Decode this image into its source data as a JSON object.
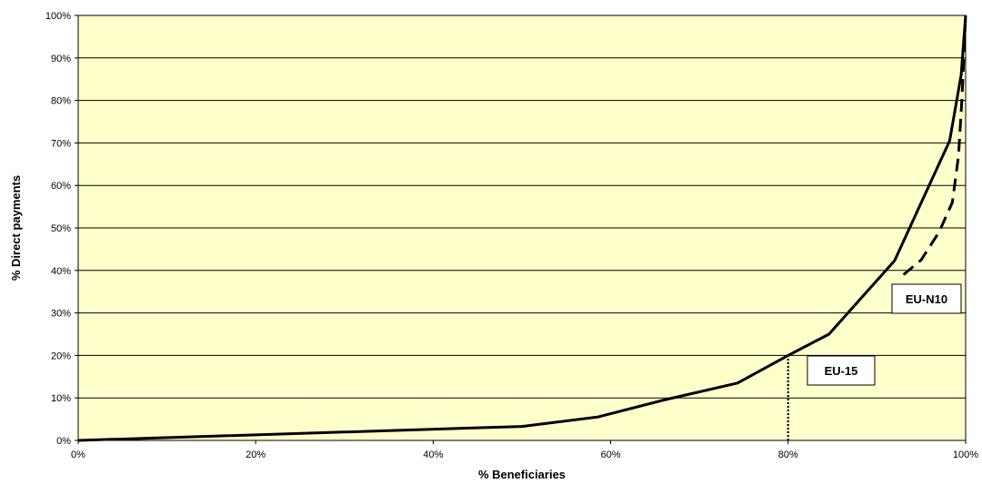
{
  "chart_data": {
    "type": "line",
    "xlabel": "% Beneficiaries",
    "ylabel": "% Direct payments",
    "xlim": [
      0,
      100
    ],
    "ylim": [
      0,
      100
    ],
    "x_ticks": [
      "0%",
      "20%",
      "40%",
      "60%",
      "80%",
      "100%"
    ],
    "y_ticks": [
      "0%",
      "10%",
      "20%",
      "30%",
      "40%",
      "50%",
      "60%",
      "70%",
      "80%",
      "90%",
      "100%"
    ],
    "grid": "horizontal",
    "plot_background": "#ffffcc",
    "series": [
      {
        "label": "EU-15",
        "style": "solid",
        "color": "#000000",
        "points": [
          [
            0,
            0
          ],
          [
            50,
            3.3
          ],
          [
            58.5,
            5.5
          ],
          [
            66,
            9.5
          ],
          [
            74.3,
            13.5
          ],
          [
            80,
            20
          ],
          [
            84.6,
            25
          ],
          [
            92,
            42.3
          ],
          [
            98.2,
            70.5
          ],
          [
            99.5,
            86
          ],
          [
            100,
            100
          ]
        ]
      },
      {
        "label": "EU-N10",
        "style": "dashed",
        "color": "#000000",
        "points": [
          [
            93,
            39
          ],
          [
            95,
            42.5
          ],
          [
            97,
            49
          ],
          [
            98.5,
            56
          ],
          [
            99.2,
            67
          ],
          [
            99.6,
            81
          ],
          [
            100,
            100
          ]
        ]
      }
    ],
    "reference_lines": [
      {
        "style": "dotted",
        "x": 80,
        "y_from": 0,
        "y_to": 20
      }
    ],
    "annotations": [
      "EU-15",
      "EU-N10"
    ]
  }
}
